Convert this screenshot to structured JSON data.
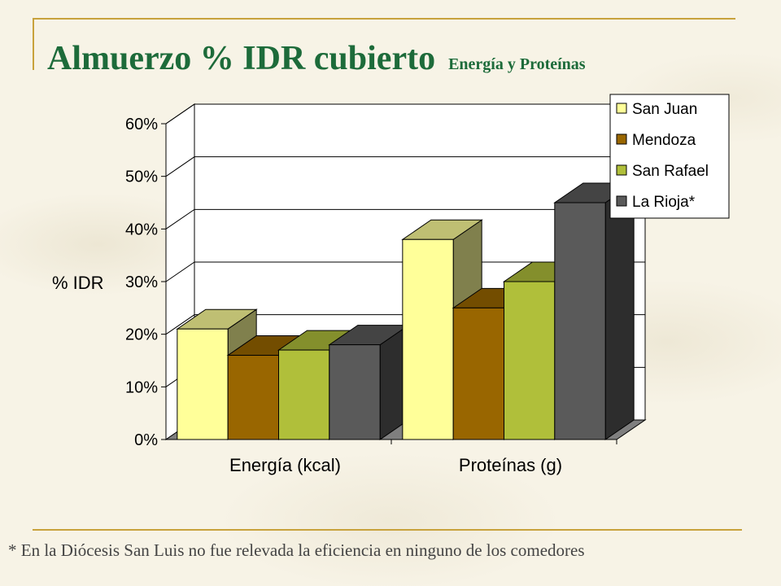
{
  "slide": {
    "title": "Almuerzo % IDR cubierto",
    "subtitle": "Energía y Proteínas",
    "footnote": "* En la Diócesis San Luis no fue relevada la eficiencia en ninguno de los comedores"
  },
  "chart_data": {
    "type": "bar",
    "title": "",
    "xlabel": "",
    "ylabel": "% IDR",
    "categories": [
      "Energía (kcal)",
      "Proteínas (g)"
    ],
    "series": [
      {
        "name": "San Juan",
        "values": [
          21,
          38
        ],
        "color": "#ffff99"
      },
      {
        "name": "Mendoza",
        "values": [
          16,
          25
        ],
        "color": "#996600"
      },
      {
        "name": "San Rafael",
        "values": [
          17,
          30
        ],
        "color": "#b0bf3a"
      },
      {
        "name": "La Rioja*",
        "values": [
          18,
          45
        ],
        "color": "#5a5a5a"
      }
    ],
    "y_ticks": [
      "0%",
      "10%",
      "20%",
      "30%",
      "40%",
      "50%",
      "60%"
    ],
    "ylim": [
      0,
      60
    ],
    "grid": true,
    "legend_position": "top-right",
    "three_d": true
  }
}
